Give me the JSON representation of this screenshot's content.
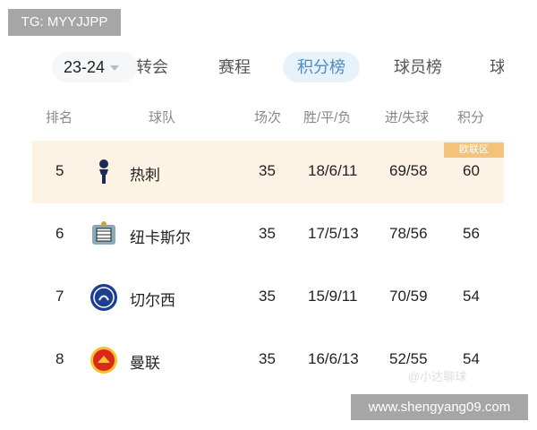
{
  "watermark_tg": "TG: MYYJJPP",
  "season": "23-24",
  "tabs": [
    "转会",
    "赛程",
    "积分榜",
    "球员榜",
    "球"
  ],
  "active_tab": "积分榜",
  "headers": {
    "rank": "排名",
    "team": "球队",
    "played": "场次",
    "wdl": "胜/平/负",
    "goals": "进/失球",
    "points": "积分"
  },
  "rows": [
    {
      "rank": "5",
      "team": "热刺",
      "played": "35",
      "wdl": "18/6/11",
      "goals": "69/58",
      "points": "60",
      "badge": "欧联区",
      "logo": "tottenham-logo-icon"
    },
    {
      "rank": "6",
      "team": "纽卡斯尔",
      "played": "35",
      "wdl": "17/5/13",
      "goals": "78/56",
      "points": "56",
      "logo": "newcastle-logo-icon"
    },
    {
      "rank": "7",
      "team": "切尔西",
      "played": "35",
      "wdl": "15/9/11",
      "goals": "70/59",
      "points": "54",
      "logo": "chelsea-logo-icon"
    },
    {
      "rank": "8",
      "team": "曼联",
      "played": "35",
      "wdl": "16/6/13",
      "goals": "52/55",
      "points": "54",
      "logo": "manutd-logo-icon"
    }
  ],
  "weibo_watermark": "@小达聊球",
  "site_watermark": "www.shengyang09.com",
  "colors": {
    "highlight": "#fdf3e5",
    "badge": "#f3c37a",
    "active_tab": "#4a8bc8"
  }
}
